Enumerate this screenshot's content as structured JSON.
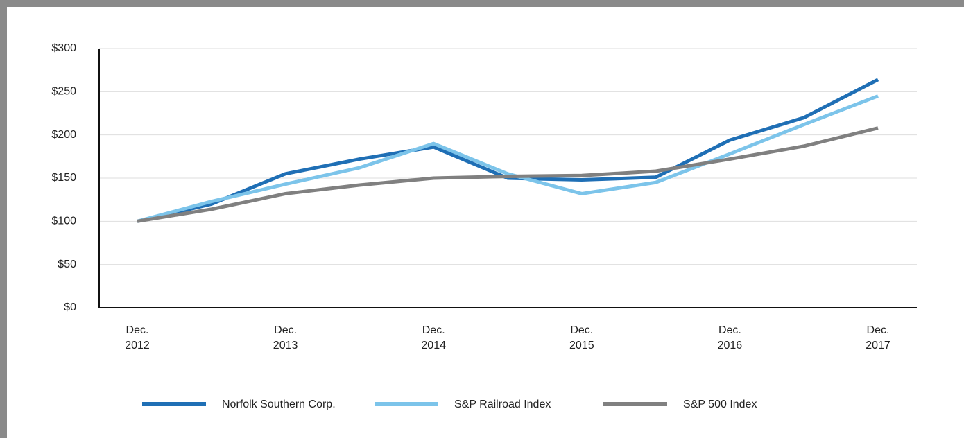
{
  "chart_data": {
    "type": "line",
    "categories": [
      "Dec. 2012",
      null,
      "Dec. 2013",
      null,
      "Dec. 2014",
      null,
      "Dec. 2015",
      null,
      "Dec. 2016",
      null,
      "Dec. 2017"
    ],
    "series": [
      {
        "name": "Norfolk Southern Corp.",
        "color": "#1f6fb5",
        "values": [
          100,
          120,
          155,
          172,
          186,
          150,
          148,
          151,
          194,
          220,
          264
        ]
      },
      {
        "name": "S&P Railroad Index",
        "color": "#7cc4ea",
        "values": [
          100,
          123,
          143,
          162,
          190,
          155,
          132,
          145,
          178,
          212,
          245
        ]
      },
      {
        "name": "S&P 500 Index",
        "color": "#808080",
        "values": [
          100,
          114,
          132,
          142,
          150,
          152,
          153,
          158,
          172,
          187,
          208
        ]
      }
    ],
    "ylim": [
      0,
      300
    ],
    "yticks": [
      {
        "value": 0,
        "label": "$0"
      },
      {
        "value": 50,
        "label": "$50"
      },
      {
        "value": 100,
        "label": "$100"
      },
      {
        "value": 150,
        "label": "$150"
      },
      {
        "value": 200,
        "label": "$200"
      },
      {
        "value": 250,
        "label": "$250"
      },
      {
        "value": 300,
        "label": "$300"
      }
    ],
    "grid": true,
    "legend": "bottom"
  }
}
